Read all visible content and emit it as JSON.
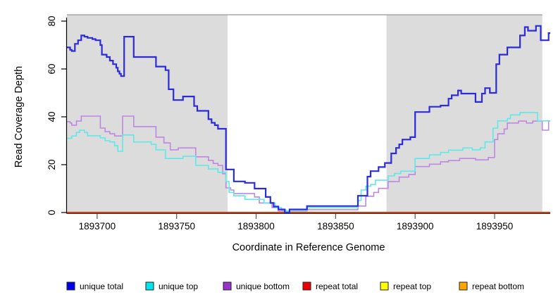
{
  "chart_data": {
    "type": "line",
    "subtype": "step-coverage-plot",
    "title": "",
    "xlabel": "Coordinate in Reference Genome",
    "ylabel": "Read Coverage Depth",
    "xlim": [
      1893681,
      1893985
    ],
    "ylim": [
      0,
      80
    ],
    "x_ticks": [
      1893700,
      1893750,
      1893800,
      1893850,
      1893900,
      1893950
    ],
    "y_ticks": [
      0,
      20,
      40,
      60,
      80
    ],
    "grid": false,
    "legend_position": "bottom",
    "plot_background": "#ffffff",
    "shaded_regions": [
      {
        "name": "left-shaded-region",
        "from": 1893681,
        "to": 1893782,
        "color": "#dcdcdc",
        "border_top": "#999999"
      },
      {
        "name": "right-shaded-region",
        "from": 1893882,
        "to": 1893980,
        "color": "#dcdcdc",
        "border_top": "#999999"
      }
    ],
    "series": [
      {
        "name": "unique total",
        "color": "#2b2bdb",
        "legend_color": "#0000ee",
        "width": 2.2,
        "points": [
          [
            1893681,
            69
          ],
          [
            1893683,
            68
          ],
          [
            1893684,
            67.5
          ],
          [
            1893686,
            70.5
          ],
          [
            1893688,
            72
          ],
          [
            1893690,
            74
          ],
          [
            1893692,
            73.5
          ],
          [
            1893694,
            73
          ],
          [
            1893697,
            72.5
          ],
          [
            1893699,
            72
          ],
          [
            1893702,
            70
          ],
          [
            1893703,
            66
          ],
          [
            1893706,
            65
          ],
          [
            1893708,
            63.5
          ],
          [
            1893710,
            62
          ],
          [
            1893712,
            60.5
          ],
          [
            1893713,
            59
          ],
          [
            1893714,
            58
          ],
          [
            1893715,
            57
          ],
          [
            1893717,
            73.5
          ],
          [
            1893723,
            65
          ],
          [
            1893737,
            61
          ],
          [
            1893743,
            59.5
          ],
          [
            1893745,
            51.5
          ],
          [
            1893748,
            47
          ],
          [
            1893754,
            48.5
          ],
          [
            1893761,
            44.5
          ],
          [
            1893763,
            42.5
          ],
          [
            1893770,
            39
          ],
          [
            1893772,
            37.5
          ],
          [
            1893774,
            36.5
          ],
          [
            1893776,
            35
          ],
          [
            1893781,
            18
          ],
          [
            1893786,
            13
          ],
          [
            1893793,
            12.4
          ],
          [
            1893799,
            10
          ],
          [
            1893806,
            6.5
          ],
          [
            1893809,
            4
          ],
          [
            1893811,
            2.5
          ],
          [
            1893814,
            1.3
          ],
          [
            1893818,
            0
          ],
          [
            1893821,
            1.3
          ],
          [
            1893832,
            2.7
          ],
          [
            1893864,
            7
          ],
          [
            1893870,
            15
          ],
          [
            1893872,
            17.3
          ],
          [
            1893877,
            19
          ],
          [
            1893881,
            20.7
          ],
          [
            1893885,
            24.7
          ],
          [
            1893888,
            27
          ],
          [
            1893890,
            28.5
          ],
          [
            1893892,
            30.5
          ],
          [
            1893897,
            31.5
          ],
          [
            1893900,
            42
          ],
          [
            1893909,
            44.2
          ],
          [
            1893916,
            44.7
          ],
          [
            1893921,
            47.6
          ],
          [
            1893923,
            49
          ],
          [
            1893927,
            51
          ],
          [
            1893929,
            49.7
          ],
          [
            1893938,
            46.2
          ],
          [
            1893942,
            49.7
          ],
          [
            1893944,
            52
          ],
          [
            1893947,
            50
          ],
          [
            1893951,
            62
          ],
          [
            1893953,
            66
          ],
          [
            1893958,
            69
          ],
          [
            1893966,
            74
          ],
          [
            1893969,
            77.5
          ],
          [
            1893971,
            76
          ],
          [
            1893976,
            78
          ],
          [
            1893979,
            72
          ],
          [
            1893984,
            75
          ],
          [
            1893985,
            75
          ]
        ]
      },
      {
        "name": "unique top",
        "color": "#60e7e7",
        "legend_color": "#00e5ee",
        "width": 1.6,
        "points": [
          [
            1893681,
            31
          ],
          [
            1893684,
            32
          ],
          [
            1893687,
            33.5
          ],
          [
            1893689,
            34.4
          ],
          [
            1893692,
            33.5
          ],
          [
            1893694,
            32.1
          ],
          [
            1893702,
            31.2
          ],
          [
            1893705,
            30
          ],
          [
            1893708,
            29.5
          ],
          [
            1893711,
            27.9
          ],
          [
            1893713,
            25.6
          ],
          [
            1893716,
            32.4
          ],
          [
            1893723,
            29.5
          ],
          [
            1893734,
            28.5
          ],
          [
            1893737,
            26.2
          ],
          [
            1893743,
            22.6
          ],
          [
            1893754,
            23.5
          ],
          [
            1893762,
            19.7
          ],
          [
            1893770,
            18.2
          ],
          [
            1893776,
            16.8
          ],
          [
            1893781,
            12.9
          ],
          [
            1893783,
            8.4
          ],
          [
            1893786,
            7
          ],
          [
            1893793,
            5.5
          ],
          [
            1893805,
            4
          ],
          [
            1893812,
            2
          ],
          [
            1893816,
            1
          ],
          [
            1893819,
            0.6
          ],
          [
            1893832,
            2
          ],
          [
            1893864,
            5
          ],
          [
            1893866,
            9.4
          ],
          [
            1893869,
            11
          ],
          [
            1893872,
            11.7
          ],
          [
            1893875,
            13.5
          ],
          [
            1893883,
            15.3
          ],
          [
            1893887,
            16.3
          ],
          [
            1893891,
            17.3
          ],
          [
            1893900,
            22.6
          ],
          [
            1893909,
            24.1
          ],
          [
            1893916,
            25.1
          ],
          [
            1893921,
            26.1
          ],
          [
            1893930,
            27
          ],
          [
            1893936,
            26.2
          ],
          [
            1893941,
            27
          ],
          [
            1893944,
            29.5
          ],
          [
            1893949,
            35.3
          ],
          [
            1893952,
            38.3
          ],
          [
            1893958,
            39.3
          ],
          [
            1893960,
            40.8
          ],
          [
            1893966,
            41.8
          ],
          [
            1893977,
            38.3
          ],
          [
            1893985,
            38.3
          ]
        ]
      },
      {
        "name": "unique bottom",
        "color": "#bf87e2",
        "legend_color": "#9a32cd",
        "width": 1.6,
        "points": [
          [
            1893681,
            38
          ],
          [
            1893683,
            37.4
          ],
          [
            1893684,
            36.5
          ],
          [
            1893687,
            38.2
          ],
          [
            1893690,
            40.3
          ],
          [
            1893702,
            35.3
          ],
          [
            1893705,
            33.8
          ],
          [
            1893708,
            32.9
          ],
          [
            1893711,
            32
          ],
          [
            1893716,
            40.3
          ],
          [
            1893723,
            35.9
          ],
          [
            1893737,
            31.5
          ],
          [
            1893742,
            29.1
          ],
          [
            1893746,
            26.2
          ],
          [
            1893751,
            27
          ],
          [
            1893762,
            23.3
          ],
          [
            1893770,
            21.8
          ],
          [
            1893773,
            20.5
          ],
          [
            1893776,
            19.7
          ],
          [
            1893779,
            16.2
          ],
          [
            1893781,
            10.3
          ],
          [
            1893784,
            9.4
          ],
          [
            1893786,
            7.9
          ],
          [
            1893799,
            6.5
          ],
          [
            1893802,
            4
          ],
          [
            1893810,
            2.1
          ],
          [
            1893814,
            0.6
          ],
          [
            1893832,
            1.2
          ],
          [
            1893864,
            2.7
          ],
          [
            1893869,
            6.8
          ],
          [
            1893874,
            8.4
          ],
          [
            1893877,
            10.1
          ],
          [
            1893883,
            12.9
          ],
          [
            1893890,
            14.8
          ],
          [
            1893896,
            15.9
          ],
          [
            1893900,
            19.2
          ],
          [
            1893909,
            20.2
          ],
          [
            1893916,
            21.2
          ],
          [
            1893921,
            21.7
          ],
          [
            1893928,
            22.6
          ],
          [
            1893938,
            22
          ],
          [
            1893946,
            23
          ],
          [
            1893950,
            30.5
          ],
          [
            1893952,
            32.9
          ],
          [
            1893956,
            34.9
          ],
          [
            1893958,
            37.4
          ],
          [
            1893965,
            38.2
          ],
          [
            1893970,
            37.4
          ],
          [
            1893974,
            38.2
          ],
          [
            1893980,
            34.4
          ],
          [
            1893984,
            38.2
          ],
          [
            1893985,
            38.2
          ]
        ]
      },
      {
        "name": "repeat total",
        "color": "#dd0000",
        "legend_color": "#ee0000",
        "width": 1.6,
        "points": [
          [
            1893681,
            0
          ],
          [
            1893985,
            0
          ]
        ]
      },
      {
        "name": "repeat top",
        "color": "#ffff00",
        "legend_color": "#ffff00",
        "width": 1.6,
        "points": [
          [
            1893681,
            0
          ],
          [
            1893985,
            0
          ]
        ]
      },
      {
        "name": "repeat bottom",
        "color": "#ffa500",
        "legend_color": "#ffa500",
        "width": 2.0,
        "points": [
          [
            1893681,
            0
          ],
          [
            1893985,
            0
          ]
        ]
      }
    ]
  }
}
